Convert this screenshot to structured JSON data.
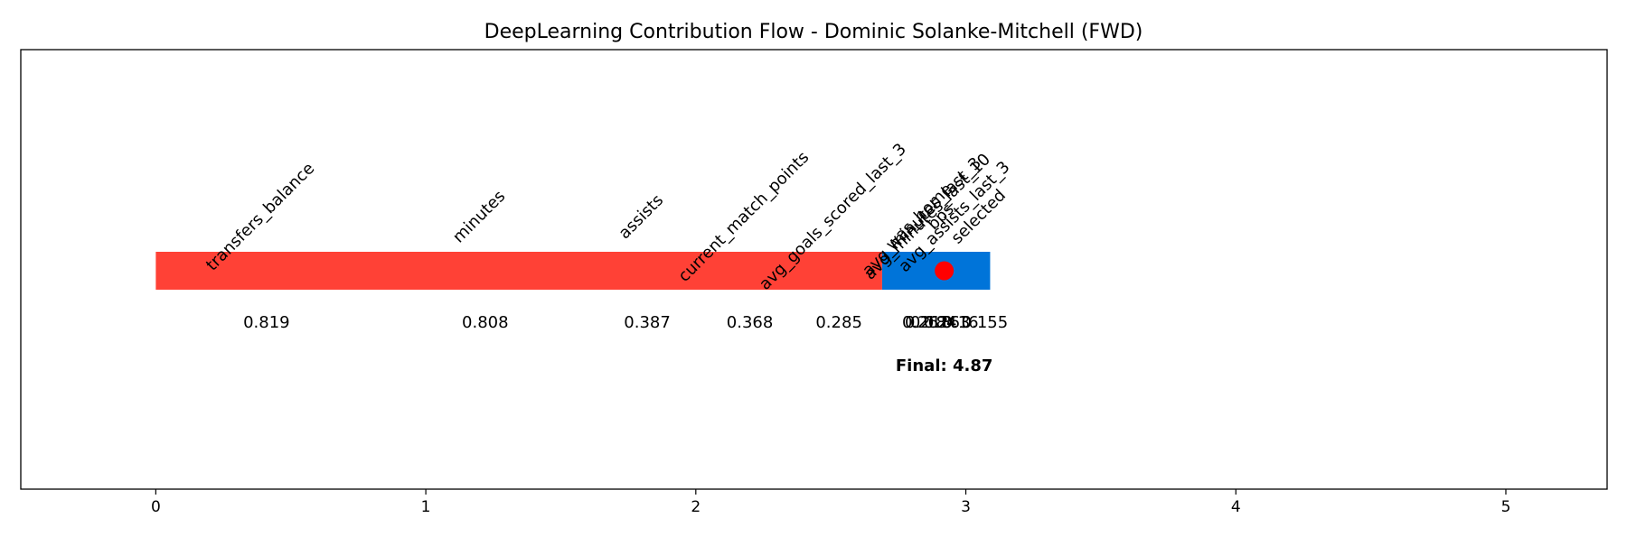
{
  "chart_data": {
    "type": "bar",
    "title": "DeepLearning Contribution Flow - Dominic Solanke-Mitchell (FWD)",
    "xlabel": "",
    "ylabel": "",
    "xlim": [
      -0.5,
      5.375
    ],
    "x_ticks": [
      "0",
      "1",
      "2",
      "3",
      "4",
      "5"
    ],
    "grid": false,
    "segments": [
      {
        "start": 0.0,
        "end": 2.69,
        "color": "#ff4136"
      },
      {
        "start": 2.69,
        "end": 3.09,
        "color": "#0074d9"
      }
    ],
    "features": [
      {
        "name": "transfers_balance",
        "position": 0.41,
        "value_label": "0.819"
      },
      {
        "name": "minutes",
        "position": 1.22,
        "value_label": "0.808"
      },
      {
        "name": "assists",
        "position": 1.82,
        "value_label": "0.387"
      },
      {
        "name": "current_match_points",
        "position": 2.2,
        "value_label": "0.368"
      },
      {
        "name": "avg_goals_scored_last_3",
        "position": 2.53,
        "value_label": "0.285"
      },
      {
        "name": "avg_minutes_last_3",
        "position": 2.86,
        "value_label": "0.218"
      },
      {
        "name": "was_home",
        "position": 2.85,
        "value_label": "0.262"
      },
      {
        "name": "avg_minutes_last_10",
        "position": 2.88,
        "value_label": "0.184"
      },
      {
        "name": "bps",
        "position": 2.93,
        "value_label": "0.163"
      },
      {
        "name": "avg_assists_last_3",
        "position": 2.98,
        "value_label": "0.16"
      },
      {
        "name": "selected",
        "position": 3.07,
        "value_label": "0.155"
      }
    ],
    "marker": {
      "x": 2.92,
      "color": "#ff0000"
    },
    "final_label": "Final: 4.87",
    "final_x": 2.92
  }
}
